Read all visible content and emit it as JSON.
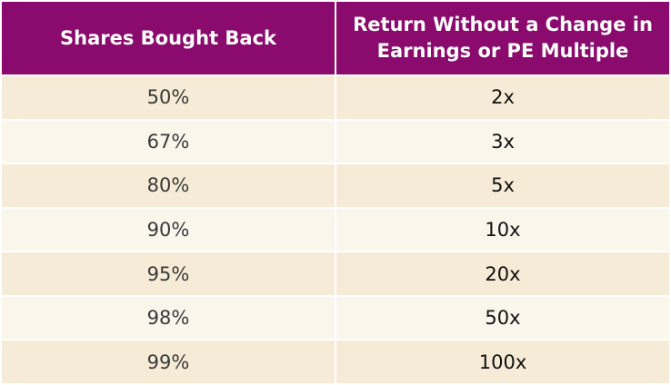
{
  "table": {
    "header": [
      "Shares Bought Back",
      "Return Without a Change in Earnings or PE Multiple"
    ],
    "rows": [
      [
        "50%",
        "2x"
      ],
      [
        "67%",
        "3x"
      ],
      [
        "80%",
        "5x"
      ],
      [
        "90%",
        "10x"
      ],
      [
        "95%",
        "20x"
      ],
      [
        "98%",
        "50x"
      ],
      [
        "99%",
        "100x"
      ]
    ]
  }
}
